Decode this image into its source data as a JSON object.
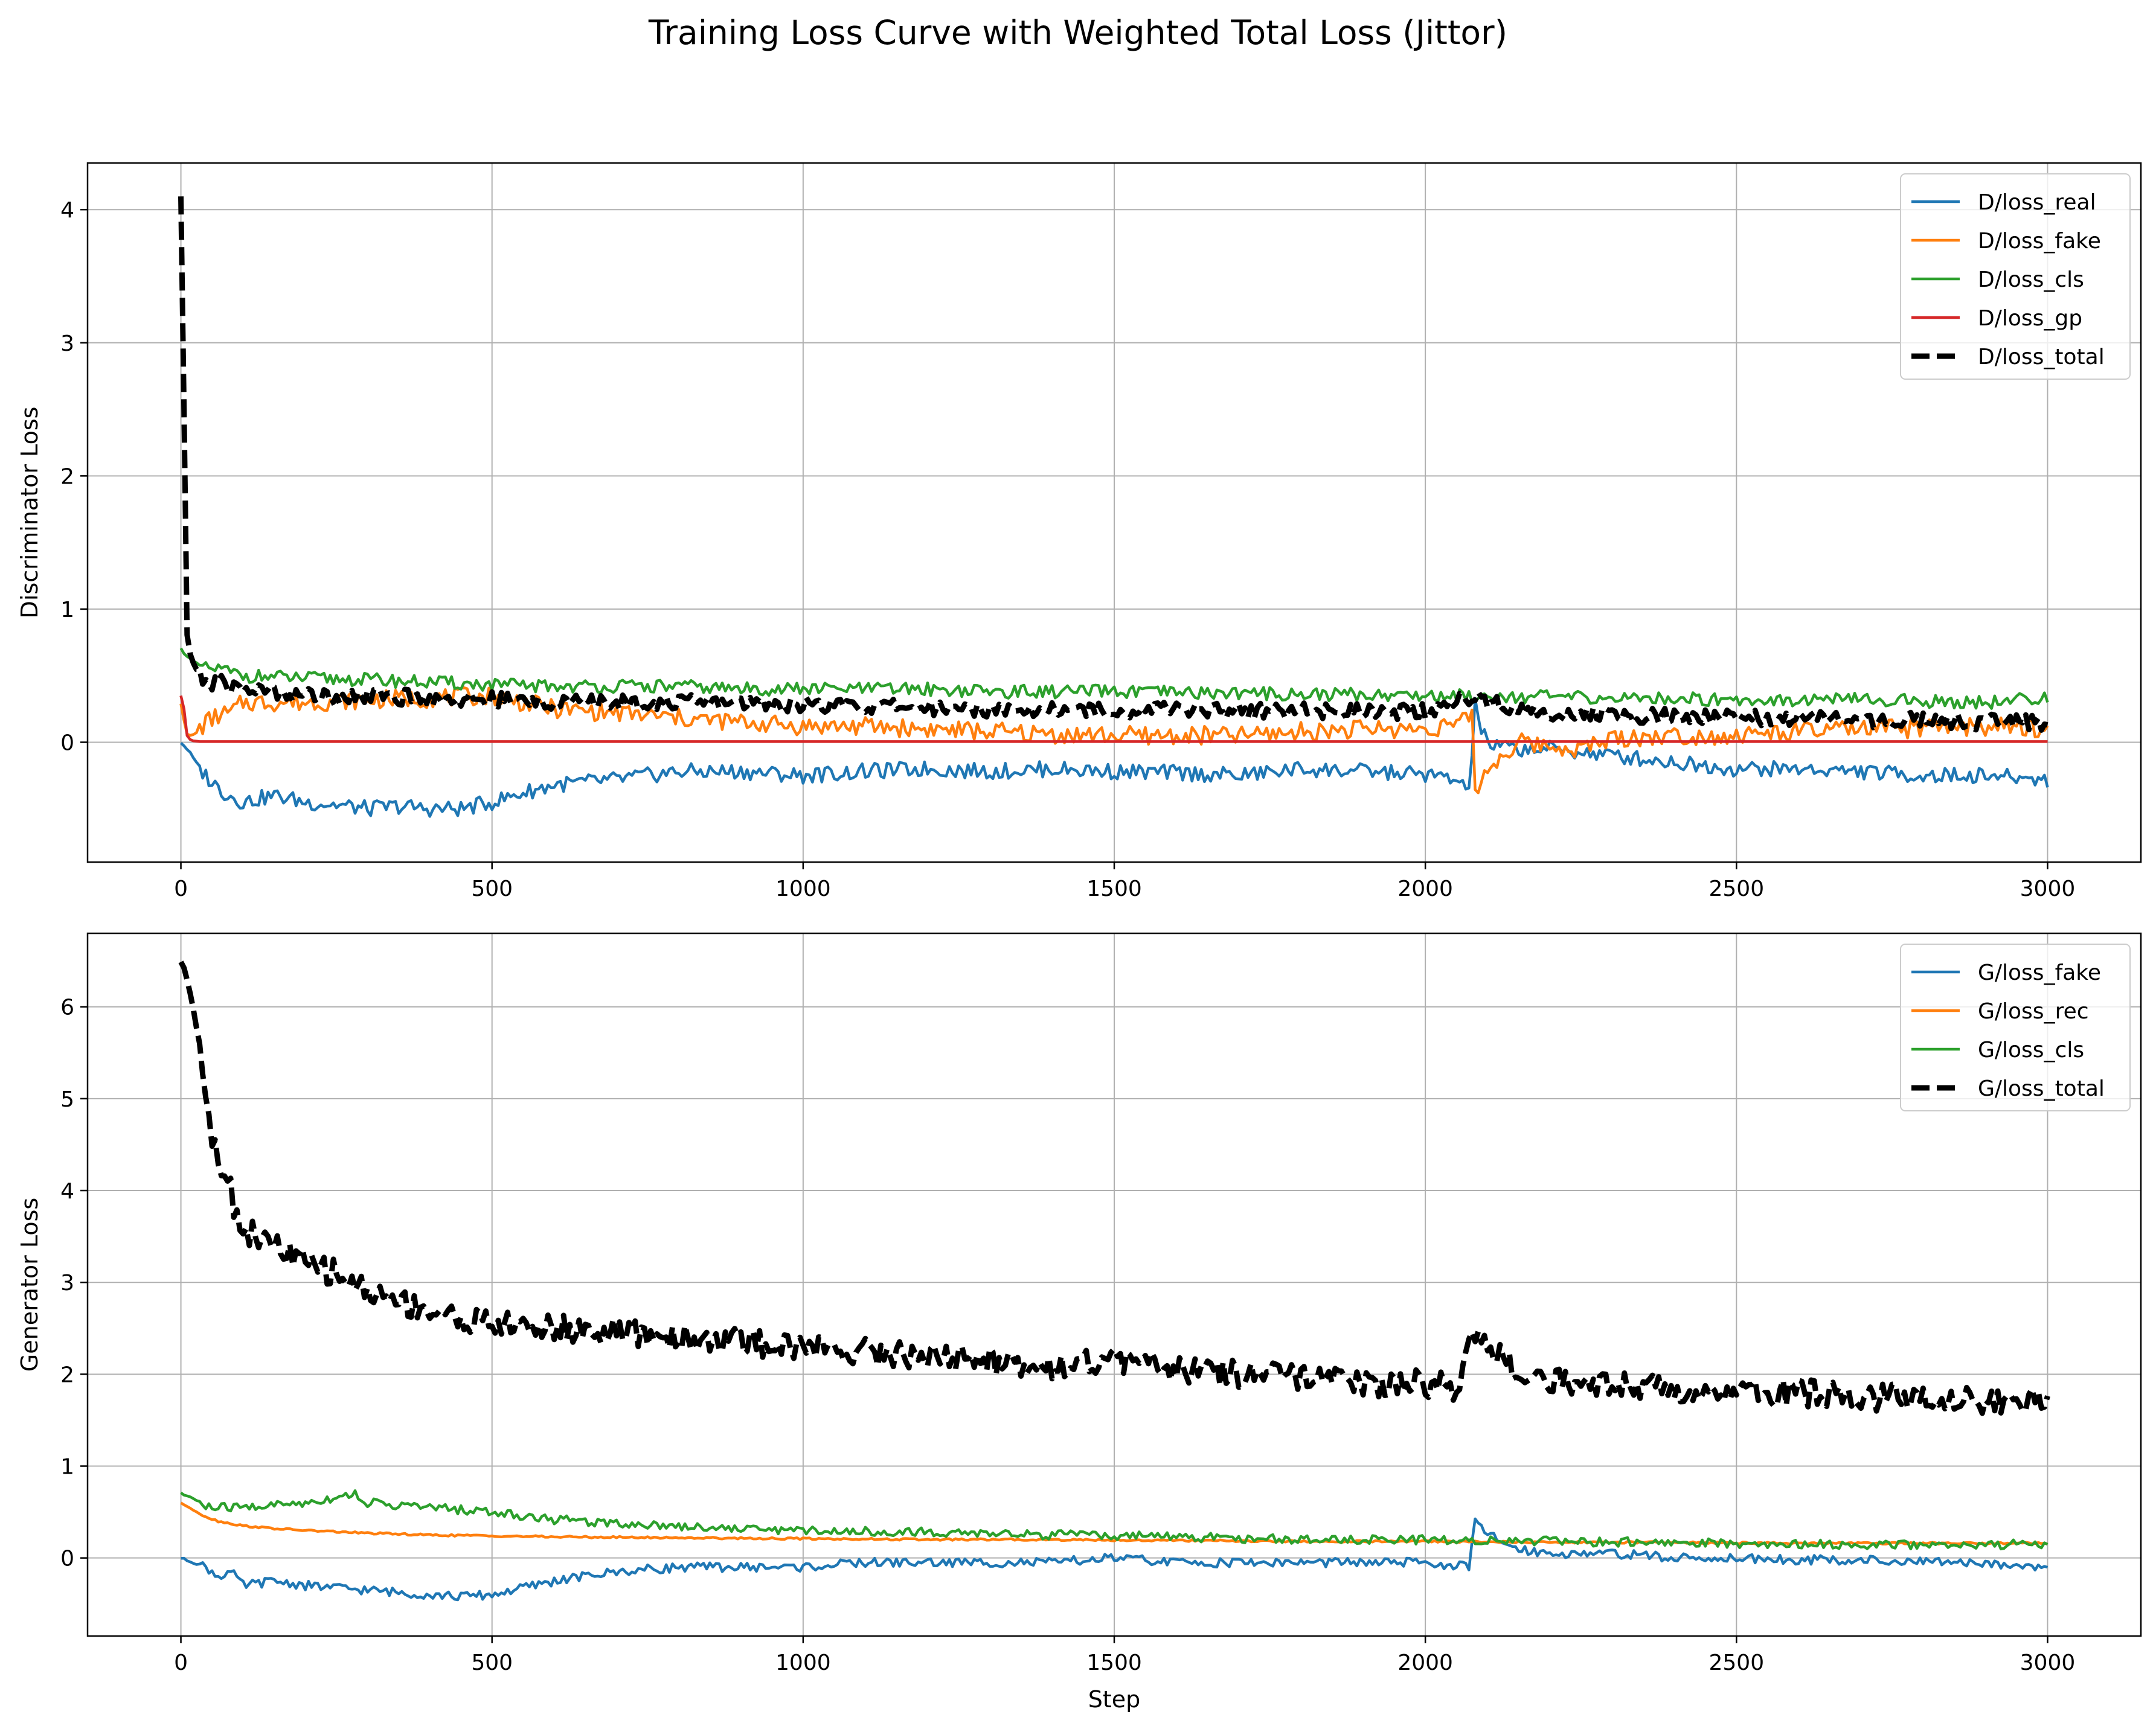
{
  "figure": {
    "title": "Training Loss Curve with Weighted Total Loss (Jittor)"
  },
  "chart_data": [
    {
      "type": "line",
      "title": "",
      "xlabel": "",
      "ylabel": "Discriminator Loss",
      "xlim": [
        -150,
        3150
      ],
      "ylim": [
        -0.9,
        4.35
      ],
      "xticks": [
        0,
        500,
        1000,
        1500,
        2000,
        2500,
        3000
      ],
      "xtick_labels": [
        "0",
        "500",
        "1000",
        "1500",
        "2000",
        "2500",
        "3000"
      ],
      "yticks": [
        0,
        1,
        2,
        3,
        4
      ],
      "ytick_labels": [
        "0",
        "1",
        "2",
        "3",
        "4"
      ],
      "grid": true,
      "legend_position": "upper-right",
      "series": [
        {
          "name": "D/loss_real",
          "color": "#1f77b4",
          "style": "solid",
          "x": [
            0,
            10,
            20,
            30,
            50,
            70,
            100,
            150,
            200,
            250,
            300,
            350,
            400,
            450,
            500,
            550,
            600,
            700,
            800,
            900,
            1000,
            1100,
            1200,
            1300,
            1400,
            1500,
            1600,
            1700,
            1800,
            1900,
            2000,
            2060,
            2070,
            2080,
            2090,
            2100,
            2150,
            2200,
            2300,
            2400,
            2500,
            2600,
            2700,
            2800,
            2900,
            3000
          ],
          "y": [
            0,
            -0.05,
            -0.12,
            -0.2,
            -0.3,
            -0.38,
            -0.45,
            -0.4,
            -0.45,
            -0.47,
            -0.5,
            -0.48,
            -0.5,
            -0.5,
            -0.45,
            -0.38,
            -0.32,
            -0.28,
            -0.22,
            -0.22,
            -0.25,
            -0.22,
            -0.2,
            -0.22,
            -0.2,
            -0.22,
            -0.23,
            -0.25,
            -0.2,
            -0.22,
            -0.24,
            -0.3,
            -0.4,
            0.3,
            0.1,
            -0.02,
            -0.05,
            -0.05,
            -0.1,
            -0.15,
            -0.2,
            -0.2,
            -0.22,
            -0.25,
            -0.25,
            -0.28
          ]
        },
        {
          "name": "D/loss_fake",
          "color": "#ff7f0e",
          "style": "solid",
          "x": [
            0,
            10,
            20,
            40,
            60,
            80,
            100,
            200,
            300,
            400,
            500,
            600,
            700,
            800,
            900,
            1000,
            1100,
            1200,
            1300,
            1400,
            1500,
            1600,
            1700,
            1800,
            1900,
            2000,
            2060,
            2075,
            2080,
            2090,
            2100,
            2150,
            2200,
            2250,
            2300,
            2400,
            2500,
            2600,
            2700,
            2800,
            2900,
            3000
          ],
          "y": [
            0.3,
            0.05,
            0.05,
            0.15,
            0.2,
            0.22,
            0.3,
            0.3,
            0.32,
            0.33,
            0.35,
            0.25,
            0.22,
            0.18,
            0.15,
            0.12,
            0.12,
            0.1,
            0.08,
            0.06,
            0.05,
            0.05,
            0.05,
            0.08,
            0.1,
            0.1,
            0.15,
            0.2,
            -0.35,
            -0.3,
            -0.2,
            0,
            -0.03,
            -0.05,
            0.03,
            0.05,
            0.05,
            0.08,
            0.1,
            0.1,
            0.12,
            0.1
          ]
        },
        {
          "name": "D/loss_cls",
          "color": "#2ca02c",
          "style": "solid",
          "x": [
            0,
            20,
            40,
            60,
            100,
            200,
            300,
            400,
            500,
            600,
            700,
            800,
            900,
            1000,
            1100,
            1200,
            1300,
            1400,
            1500,
            1600,
            1700,
            1800,
            1900,
            2000,
            2100,
            2200,
            2300,
            2400,
            2500,
            2600,
            2700,
            2800,
            2900,
            3000
          ],
          "y": [
            0.7,
            0.6,
            0.55,
            0.55,
            0.5,
            0.48,
            0.47,
            0.45,
            0.43,
            0.42,
            0.42,
            0.42,
            0.4,
            0.4,
            0.4,
            0.4,
            0.38,
            0.38,
            0.38,
            0.37,
            0.37,
            0.36,
            0.36,
            0.35,
            0.35,
            0.34,
            0.33,
            0.33,
            0.32,
            0.32,
            0.32,
            0.31,
            0.3,
            0.33
          ]
        },
        {
          "name": "D/loss_gp",
          "color": "#d62728",
          "style": "solid",
          "x": [
            0,
            5,
            10,
            15,
            20,
            30,
            3000
          ],
          "y": [
            0.35,
            0.25,
            0.05,
            0.02,
            0.01,
            0.005,
            0.005
          ]
        },
        {
          "name": "D/loss_total",
          "color": "#000000",
          "style": "dashed",
          "x": [
            0,
            5,
            10,
            15,
            20,
            30,
            40,
            60,
            100,
            150,
            200,
            300,
            400,
            500,
            600,
            700,
            800,
            900,
            1000,
            1100,
            1200,
            1300,
            1400,
            1500,
            1600,
            1700,
            1800,
            1900,
            2000,
            2080,
            2100,
            2200,
            2300,
            2400,
            2500,
            2600,
            2700,
            2800,
            2900,
            3000
          ],
          "y": [
            4.1,
            2.5,
            0.8,
            0.65,
            0.6,
            0.5,
            0.45,
            0.45,
            0.4,
            0.38,
            0.35,
            0.35,
            0.33,
            0.32,
            0.3,
            0.3,
            0.3,
            0.3,
            0.28,
            0.27,
            0.26,
            0.25,
            0.25,
            0.24,
            0.25,
            0.24,
            0.24,
            0.23,
            0.23,
            0.35,
            0.3,
            0.22,
            0.2,
            0.2,
            0.18,
            0.18,
            0.17,
            0.17,
            0.15,
            0.15
          ]
        }
      ]
    },
    {
      "type": "line",
      "title": "",
      "xlabel": "Step",
      "ylabel": "Generator Loss",
      "xlim": [
        -150,
        3150
      ],
      "ylim": [
        -0.85,
        6.8
      ],
      "xticks": [
        0,
        500,
        1000,
        1500,
        2000,
        2500,
        3000
      ],
      "xtick_labels": [
        "0",
        "500",
        "1000",
        "1500",
        "2000",
        "2500",
        "3000"
      ],
      "yticks": [
        0,
        1,
        2,
        3,
        4,
        5,
        6
      ],
      "ytick_labels": [
        "0",
        "1",
        "2",
        "3",
        "4",
        "5",
        "6"
      ],
      "grid": true,
      "legend_position": "upper-right",
      "series": [
        {
          "name": "G/loss_fake",
          "color": "#1f77b4",
          "style": "solid",
          "x": [
            0,
            20,
            40,
            60,
            80,
            100,
            150,
            200,
            300,
            400,
            450,
            500,
            600,
            700,
            800,
            900,
            1000,
            1100,
            1200,
            1300,
            1400,
            1500,
            1600,
            1700,
            1800,
            1900,
            2000,
            2070,
            2080,
            2100,
            2150,
            2200,
            2300,
            2400,
            2500,
            2600,
            2700,
            2800,
            2900,
            3000
          ],
          "y": [
            0,
            -0.05,
            -0.1,
            -0.2,
            -0.15,
            -0.3,
            -0.25,
            -0.3,
            -0.35,
            -0.4,
            -0.42,
            -0.4,
            -0.25,
            -0.15,
            -0.1,
            -0.1,
            -0.1,
            -0.05,
            -0.05,
            -0.05,
            -0.05,
            0,
            -0.05,
            -0.05,
            -0.05,
            -0.05,
            -0.05,
            -0.1,
            0.4,
            0.25,
            0.1,
            0.05,
            0.05,
            0,
            0,
            -0.02,
            -0.02,
            -0.05,
            -0.05,
            -0.1
          ]
        },
        {
          "name": "G/loss_rec",
          "color": "#ff7f0e",
          "style": "solid",
          "x": [
            0,
            20,
            40,
            60,
            100,
            150,
            200,
            300,
            400,
            500,
            600,
            800,
            1000,
            1200,
            1400,
            1600,
            1800,
            2000,
            2200,
            2400,
            2600,
            2800,
            3000
          ],
          "y": [
            0.6,
            0.52,
            0.45,
            0.4,
            0.35,
            0.32,
            0.3,
            0.27,
            0.25,
            0.24,
            0.23,
            0.22,
            0.21,
            0.2,
            0.2,
            0.19,
            0.18,
            0.18,
            0.17,
            0.17,
            0.16,
            0.16,
            0.16
          ]
        },
        {
          "name": "G/loss_cls",
          "color": "#2ca02c",
          "style": "solid",
          "x": [
            0,
            20,
            40,
            60,
            100,
            200,
            280,
            300,
            400,
            500,
            600,
            700,
            800,
            900,
            1000,
            1200,
            1400,
            1600,
            1800,
            2000,
            2200,
            2400,
            2600,
            2800,
            3000
          ],
          "y": [
            0.7,
            0.65,
            0.55,
            0.55,
            0.55,
            0.6,
            0.7,
            0.6,
            0.55,
            0.5,
            0.42,
            0.38,
            0.35,
            0.32,
            0.3,
            0.28,
            0.25,
            0.23,
            0.2,
            0.2,
            0.18,
            0.17,
            0.15,
            0.14,
            0.15
          ]
        },
        {
          "name": "G/loss_total",
          "color": "#000000",
          "style": "dashed",
          "x": [
            0,
            10,
            20,
            30,
            40,
            50,
            60,
            70,
            80,
            90,
            100,
            120,
            150,
            200,
            250,
            300,
            350,
            400,
            450,
            500,
            600,
            700,
            800,
            900,
            1000,
            1100,
            1200,
            1300,
            1400,
            1500,
            1600,
            1700,
            1800,
            1900,
            2000,
            2050,
            2080,
            2100,
            2150,
            2200,
            2300,
            2400,
            2500,
            2600,
            2700,
            2800,
            2900,
            3000
          ],
          "y": [
            6.5,
            6.3,
            6.0,
            5.6,
            5.1,
            4.6,
            4.3,
            4.3,
            4.0,
            3.7,
            3.6,
            3.5,
            3.4,
            3.2,
            3.1,
            2.9,
            2.8,
            2.7,
            2.6,
            2.55,
            2.5,
            2.45,
            2.4,
            2.35,
            2.3,
            2.25,
            2.2,
            2.15,
            2.1,
            2.15,
            2.05,
            2.0,
            1.95,
            1.9,
            1.9,
            1.85,
            2.5,
            2.3,
            2.0,
            1.95,
            1.9,
            1.85,
            1.8,
            1.8,
            1.75,
            1.75,
            1.7,
            1.7
          ]
        }
      ]
    }
  ]
}
